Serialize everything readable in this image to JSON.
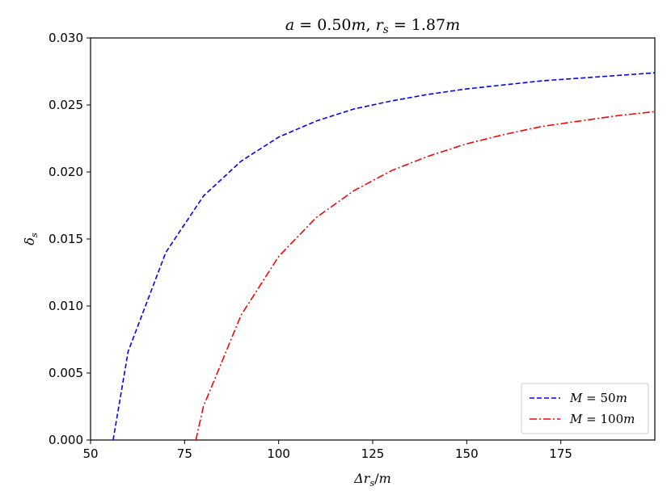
{
  "chart_data": {
    "type": "line",
    "title": "a = 0.50m, r_s = 1.87m",
    "xlabel": "Δr_s/m",
    "ylabel": "δ_s",
    "xlim": [
      50,
      200
    ],
    "ylim": [
      0,
      0.03
    ],
    "x_ticks": [
      50,
      75,
      100,
      125,
      150,
      175
    ],
    "y_ticks": [
      0.0,
      0.005,
      0.01,
      0.015,
      0.02,
      0.025,
      0.03
    ],
    "x_tick_labels": [
      "50",
      "75",
      "100",
      "125",
      "150",
      "175"
    ],
    "y_tick_labels": [
      "0.000",
      "0.005",
      "0.010",
      "0.015",
      "0.020",
      "0.025",
      "0.030"
    ],
    "grid": false,
    "legend_position": "lower-right",
    "series": [
      {
        "name": "M = 50m",
        "color": "#0000ff",
        "style": "dashed",
        "x": [
          56,
          60,
          70,
          80,
          90,
          100,
          110,
          120,
          130,
          140,
          150,
          160,
          170,
          180,
          190,
          200
        ],
        "y": [
          0.0,
          0.0066,
          0.014,
          0.0182,
          0.0208,
          0.0226,
          0.0238,
          0.0247,
          0.0253,
          0.0258,
          0.0262,
          0.0265,
          0.0268,
          0.027,
          0.0272,
          0.0274
        ]
      },
      {
        "name": "M = 100m",
        "color": "#ff0000",
        "style": "dashdot",
        "x": [
          78,
          80,
          90,
          100,
          110,
          120,
          130,
          140,
          150,
          160,
          170,
          180,
          190,
          200
        ],
        "y": [
          0.0,
          0.0025,
          0.0093,
          0.0137,
          0.0166,
          0.0186,
          0.0201,
          0.0212,
          0.0221,
          0.0228,
          0.0234,
          0.0238,
          0.0242,
          0.0245
        ]
      }
    ]
  }
}
